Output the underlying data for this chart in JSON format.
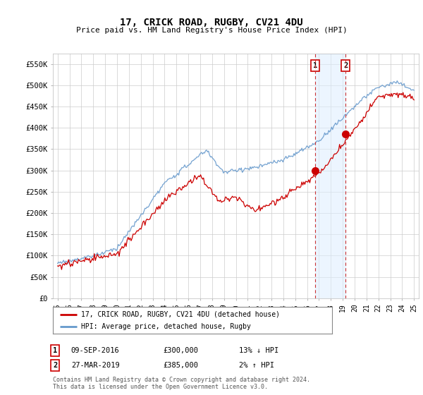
{
  "title": "17, CRICK ROAD, RUGBY, CV21 4DU",
  "subtitle": "Price paid vs. HM Land Registry's House Price Index (HPI)",
  "ylabel_ticks": [
    "£0",
    "£50K",
    "£100K",
    "£150K",
    "£200K",
    "£250K",
    "£300K",
    "£350K",
    "£400K",
    "£450K",
    "£500K",
    "£550K"
  ],
  "ytick_values": [
    0,
    50000,
    100000,
    150000,
    200000,
    250000,
    300000,
    350000,
    400000,
    450000,
    500000,
    550000
  ],
  "ylim": [
    0,
    575000
  ],
  "sale1": {
    "date_num": 2016.69,
    "price": 300000,
    "label": "1",
    "date_str": "09-SEP-2016"
  },
  "sale2": {
    "date_num": 2019.24,
    "price": 385000,
    "label": "2",
    "date_str": "27-MAR-2019"
  },
  "legend_house": "17, CRICK ROAD, RUGBY, CV21 4DU (detached house)",
  "legend_hpi": "HPI: Average price, detached house, Rugby",
  "footer": "Contains HM Land Registry data © Crown copyright and database right 2024.\nThis data is licensed under the Open Government Licence v3.0.",
  "table_row1": [
    "1",
    "09-SEP-2016",
    "£300,000",
    "13% ↓ HPI"
  ],
  "table_row2": [
    "2",
    "27-MAR-2019",
    "£385,000",
    "2% ↑ HPI"
  ],
  "line_house_color": "#cc0000",
  "line_hpi_color": "#6699cc",
  "hpi_fill_color": "#ddeeff",
  "background_color": "#ffffff",
  "grid_color": "#cccccc",
  "sale_marker_color": "#cc0000",
  "sale_vline_color": "#cc3333",
  "sale_fill_color": "#ddeeff",
  "plot_bg": "#ffffff"
}
